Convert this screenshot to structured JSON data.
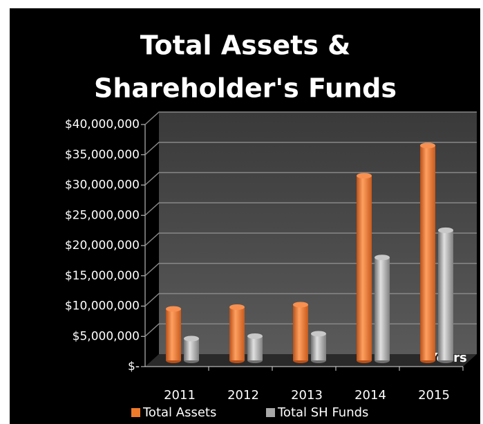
{
  "chart_data": {
    "type": "bar",
    "title": [
      "Total Assets &",
      "Shareholder's Funds"
    ],
    "x_label": "Years",
    "categories": [
      "2011",
      "2012",
      "2013",
      "2014",
      "2015"
    ],
    "series": [
      {
        "name": "Total Assets",
        "color": "#f07a2a",
        "values": [
          8500000,
          8800000,
          9200000,
          30500000,
          35500000
        ]
      },
      {
        "name": "Total SH Funds",
        "color": "#a8a8a8",
        "values": [
          3600000,
          4000000,
          4400000,
          17000000,
          21500000
        ]
      }
    ],
    "ylim": [
      0,
      40000000
    ],
    "yticks": [
      {
        "value": 0,
        "label": "$-"
      },
      {
        "value": 5000000,
        "label": "$5,000,000"
      },
      {
        "value": 10000000,
        "label": "$10,000,000"
      },
      {
        "value": 15000000,
        "label": "$15,000,000"
      },
      {
        "value": 20000000,
        "label": "$20,000,000"
      },
      {
        "value": 25000000,
        "label": "$25,000,000"
      },
      {
        "value": 30000000,
        "label": "$30,000,000"
      },
      {
        "value": 35000000,
        "label": "$35,000,000"
      },
      {
        "value": 40000000,
        "label": "$40,000,000"
      }
    ],
    "grid": true,
    "legend": "bottom"
  }
}
